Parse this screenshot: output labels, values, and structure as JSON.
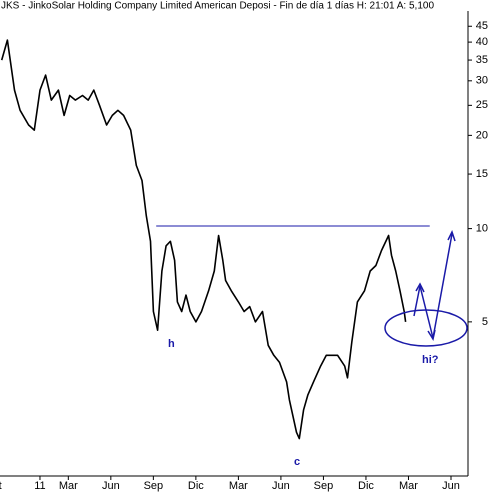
{
  "header": {
    "title": "JKS - JinkoSolar Holding Company Limited American Deposi - Fin de día 1 días H: 21:01 A: 5,100"
  },
  "chart_data": {
    "type": "line",
    "log_scale": true,
    "color": "#000000",
    "x": [
      0.3,
      0.7,
      1.2,
      1.6,
      2.2,
      2.6,
      3.0,
      3.4,
      3.8,
      4.3,
      4.7,
      5.1,
      5.5,
      6.0,
      6.4,
      6.8,
      7.2,
      7.7,
      8.1,
      8.5,
      8.9,
      9.4,
      9.8,
      10.2,
      10.5,
      10.8,
      11.0,
      11.3,
      11.6,
      11.9,
      12.2,
      12.5,
      12.7,
      13.0,
      13.3,
      13.6,
      14.0,
      14.4,
      14.9,
      15.3,
      15.6,
      15.9,
      16.1,
      16.5,
      17.0,
      17.4,
      17.8,
      18.2,
      18.7,
      19.1,
      19.5,
      19.9,
      20.4,
      20.6,
      21.1,
      21.3,
      21.6,
      21.9,
      22.3,
      22.8,
      23.2,
      23.6,
      24.0,
      24.5,
      24.7,
      25.0,
      25.4,
      25.9,
      26.3,
      26.7,
      27.1,
      27.6,
      27.8,
      28.1,
      28.4,
      28.7,
      28.8
    ],
    "values": [
      35.0,
      40.6,
      28.0,
      24.1,
      21.6,
      20.8,
      28.0,
      31.3,
      26.0,
      28.0,
      23.2,
      26.9,
      26.0,
      26.9,
      26.0,
      28.0,
      25.0,
      21.6,
      23.2,
      24.1,
      23.2,
      20.8,
      16.0,
      14.3,
      11.0,
      9.1,
      5.4,
      4.7,
      7.3,
      8.8,
      9.1,
      7.9,
      5.8,
      5.4,
      6.1,
      5.4,
      5.0,
      5.4,
      6.3,
      7.3,
      9.5,
      7.9,
      6.8,
      6.3,
      5.8,
      5.4,
      5.6,
      5.0,
      5.4,
      4.2,
      3.9,
      3.7,
      3.2,
      2.8,
      2.2,
      2.1,
      2.6,
      2.9,
      3.2,
      3.6,
      3.9,
      3.9,
      3.9,
      3.6,
      3.3,
      4.3,
      5.8,
      6.3,
      7.3,
      7.6,
      8.5,
      9.5,
      8.2,
      7.3,
      6.3,
      5.4,
      5.0
    ],
    "xlim": [
      0.18,
      33.2
    ],
    "xticks": [
      {
        "value": 0,
        "label": "ct"
      },
      {
        "value": 3,
        "label": "11"
      },
      {
        "value": 5,
        "label": "Mar"
      },
      {
        "value": 8,
        "label": "Jun"
      },
      {
        "value": 11,
        "label": "Sep"
      },
      {
        "value": 14,
        "label": "Dic"
      },
      {
        "value": 17,
        "label": "Mar"
      },
      {
        "value": 20,
        "label": "Jun"
      },
      {
        "value": 23,
        "label": "Sep"
      },
      {
        "value": 26,
        "label": "Dic"
      },
      {
        "value": 29,
        "label": "Mar"
      },
      {
        "value": 32,
        "label": "Jun"
      }
    ],
    "ylim": [
      1.59,
      54.7
    ],
    "yticks": [
      45,
      40,
      35,
      30,
      25,
      20,
      15,
      10,
      5
    ],
    "hline": {
      "value": 10.2,
      "x": [
        11.2,
        30.5
      ],
      "color": "#1a1aa8"
    },
    "annotations": [
      "h",
      "c",
      "hi?"
    ]
  }
}
